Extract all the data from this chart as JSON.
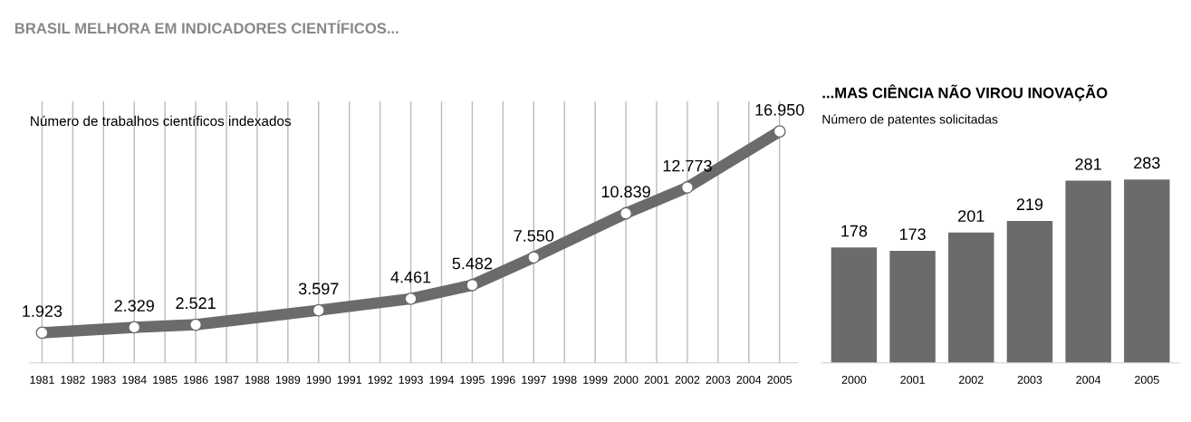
{
  "chart_data": [
    {
      "type": "line",
      "title": "BRASIL MELHORA EM INDICADORES CIENTÍFICOS...",
      "subtitle": "Número de trabalhos científicos indexados",
      "x": [
        1981,
        1984,
        1986,
        1990,
        1993,
        1995,
        1997,
        2000,
        2002,
        2005
      ],
      "values": [
        1923,
        2329,
        2521,
        3597,
        4461,
        5482,
        7550,
        10839,
        12773,
        16950
      ],
      "value_labels": [
        "1.923",
        "2.329",
        "2.521",
        "3.597",
        "4.461",
        "5.482",
        "7.550",
        "10.839",
        "12.773",
        "16.950"
      ],
      "color": "#6b6b6b",
      "marker": "circle",
      "grid": "x",
      "tick_labels": "x",
      "xlim": [
        1980.6,
        2005.6
      ],
      "xticks": [
        1981,
        1982,
        1983,
        1984,
        1985,
        1986,
        1987,
        1988,
        1989,
        1990,
        1991,
        1992,
        1993,
        1994,
        1995,
        1996,
        1997,
        1998,
        1999,
        2000,
        2001,
        2002,
        2003,
        2004,
        2005
      ]
    },
    {
      "type": "bar",
      "title": "...MAS CIÊNCIA NÃO VIROU INOVAÇÃO",
      "subtitle": "Número de patentes solicitadas",
      "categories": [
        "2000",
        "2001",
        "2002",
        "2003",
        "2004",
        "2005"
      ],
      "values": [
        178,
        173,
        201,
        219,
        281,
        283
      ],
      "color": "#6b6b6b",
      "data_labels": true,
      "tick_labels": "x"
    }
  ]
}
